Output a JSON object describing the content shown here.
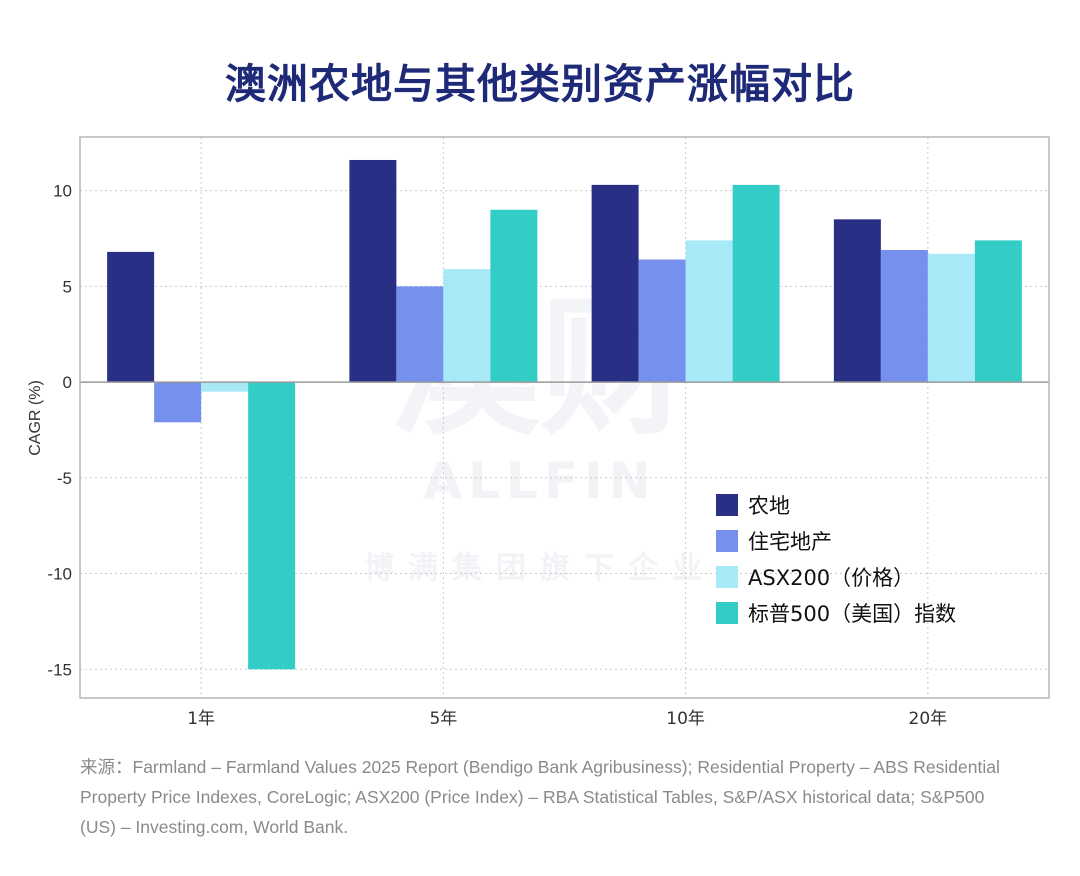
{
  "title": "澳洲农地与其他类别资产涨幅对比",
  "source": "来源：Farmland – Farmland Values 2025 Report (Bendigo Bank Agribusiness); Residential Property – ABS Residential Property Price Indexes, CoreLogic; ASX200 (Price Index) – RBA Statistical Tables, S&P/ASX historical data; S&P500 (US) – Investing.com, World Bank.",
  "watermark": {
    "big": "澳财",
    "brand": "ALLFIN",
    "sub": "博满集团旗下企业"
  },
  "chart_data": {
    "type": "bar",
    "categories": [
      "1年",
      "5年",
      "10年",
      "20年"
    ],
    "ylabel": "CAGR (%)",
    "ylim": [
      -16.5,
      12.8
    ],
    "yticks": [
      10,
      5,
      0,
      -5,
      -10,
      -15
    ],
    "ytick_labels": [
      "10",
      "5",
      "0",
      "-5",
      "-10",
      "-15"
    ],
    "grid": true,
    "legend_position": "bottom-right",
    "series": [
      {
        "name": "农地",
        "color": "#2a2f86",
        "values": [
          6.8,
          11.6,
          10.3,
          8.5
        ]
      },
      {
        "name": "住宅地产",
        "color": "#7690ee",
        "values": [
          -2.1,
          5.0,
          6.4,
          6.9
        ]
      },
      {
        "name": "ASX200（价格）",
        "color": "#a8e9f8",
        "values": [
          -0.5,
          5.9,
          7.4,
          6.7
        ]
      },
      {
        "name": "标普500（美国）指数",
        "color": "#33cdc8",
        "values": [
          -15.0,
          9.0,
          10.3,
          7.4
        ]
      }
    ]
  }
}
